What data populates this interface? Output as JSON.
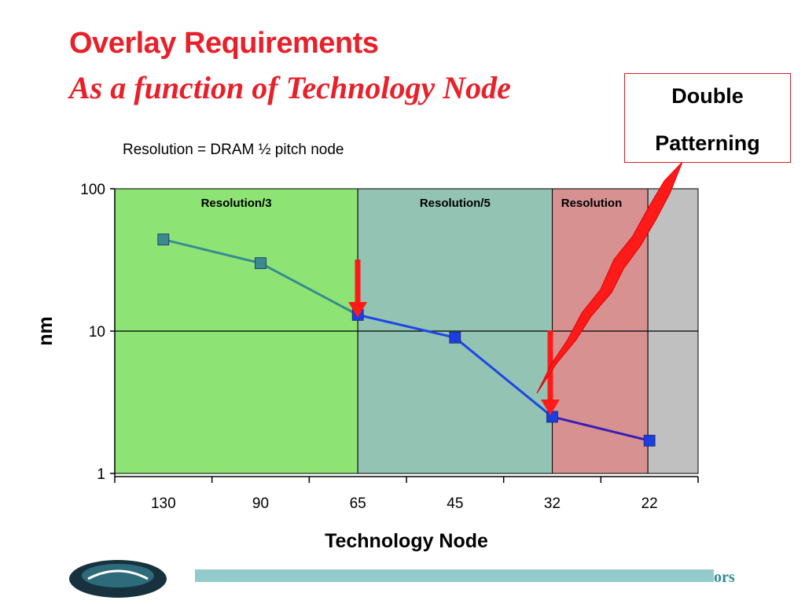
{
  "slide": {
    "title": "Overlay Requirements",
    "subtitle": "As a function of Technology Node",
    "callout_line1": "Double",
    "callout_line2": "Patterning",
    "resolution_note": "Resolution = DRAM ½ pitch node",
    "footer_text": "ors"
  },
  "colors": {
    "title": "#e8202a",
    "region_res3": "#8de474",
    "region_res5": "#92c3b3",
    "region_res_pink": "#d69190",
    "region_gray": "#c0c0c0",
    "series_line_early": "#3a8a8e",
    "series_line_mid": "#1e46e6",
    "series_line_late": "#3a1eb4",
    "marker_early": "#3a8a8e",
    "marker_late": "#1c3ee0",
    "arrow_red": "#ff1a1a"
  },
  "chart_data": {
    "type": "line",
    "yscale": "log",
    "ylim": [
      1,
      100
    ],
    "yticks": [
      "1",
      "10",
      "100"
    ],
    "xlabel": "Technology Node",
    "ylabel": "nm",
    "categories": [
      "130",
      "90",
      "65",
      "45",
      "32",
      "22"
    ],
    "series": [
      {
        "values": [
          44,
          30,
          13,
          9,
          2.5,
          1.7
        ]
      }
    ],
    "regions": [
      {
        "label": "Resolution/3",
        "from_node": "130",
        "to_node": "65"
      },
      {
        "label": "Resolution/5",
        "from_node": "65",
        "to_node": "32"
      },
      {
        "label": "Resolution",
        "from_node": "32",
        "to_node": "22"
      },
      {
        "label": "",
        "from_node": "22",
        "to_node": ""
      }
    ],
    "grid": true
  }
}
